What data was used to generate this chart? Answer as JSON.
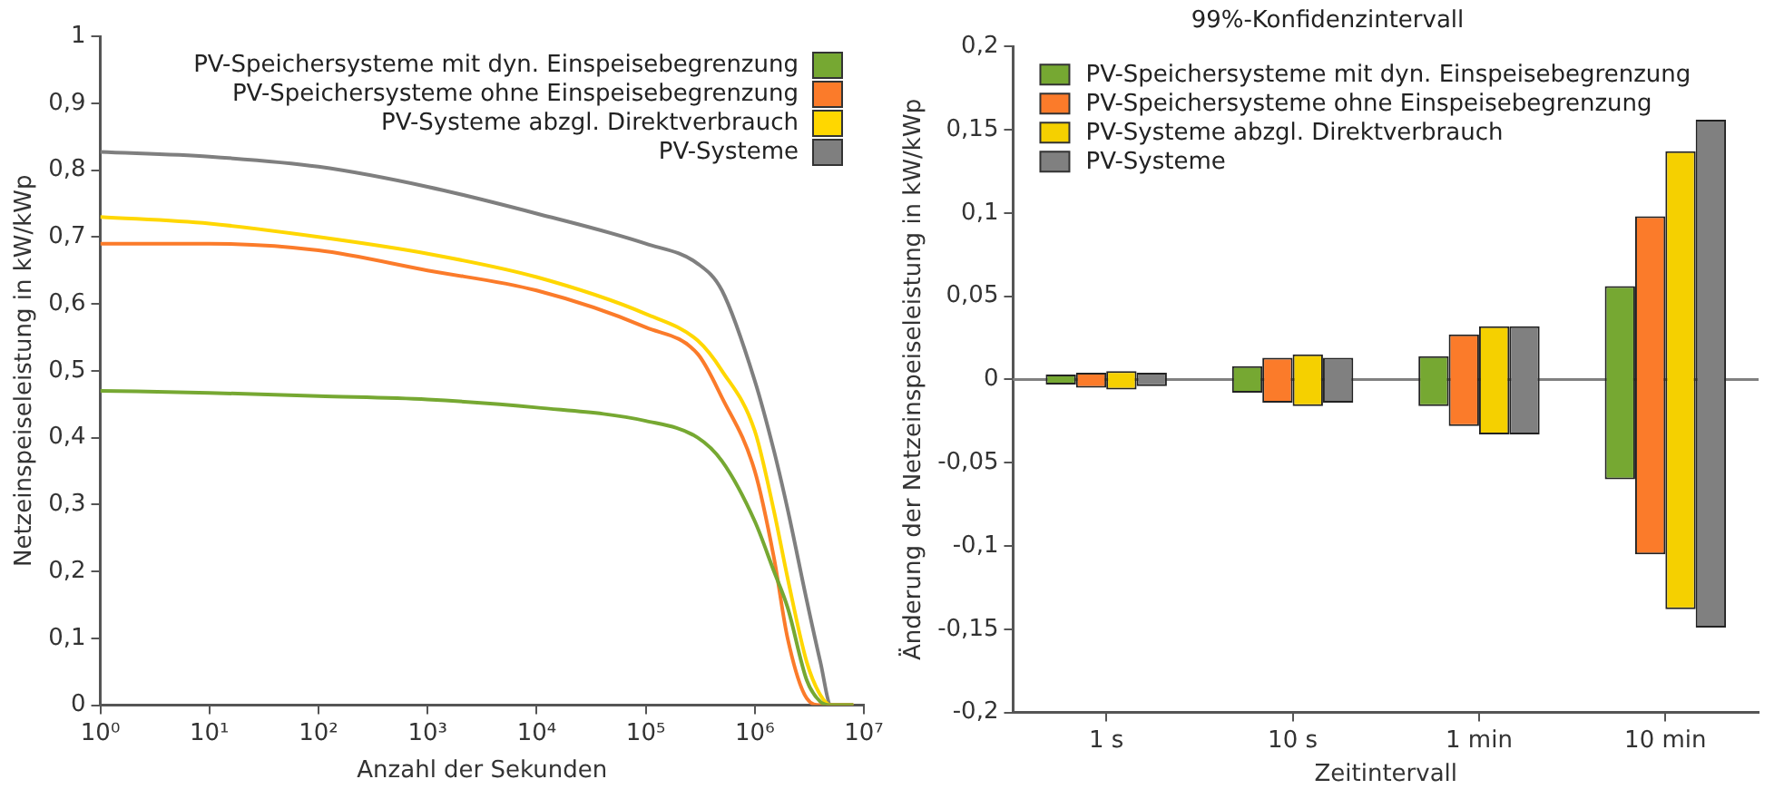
{
  "chart_data": [
    {
      "type": "line",
      "xlabel": "Anzahl der Sekunden",
      "ylabel": "Netzeinspeiseleistung in kW/kWp",
      "log": "x",
      "xlim": [
        1,
        10000000
      ],
      "xticks": [
        {
          "value": 1,
          "label": "10⁰"
        },
        {
          "value": 10,
          "label": "10¹"
        },
        {
          "value": 100,
          "label": "10²"
        },
        {
          "value": 1000,
          "label": "10³"
        },
        {
          "value": 10000,
          "label": "10⁴"
        },
        {
          "value": 100000,
          "label": "10⁵"
        },
        {
          "value": 1000000,
          "label": "10⁶"
        },
        {
          "value": 10000000,
          "label": "10⁷"
        }
      ],
      "ylim": [
        0,
        1
      ],
      "yticks": [
        {
          "value": 0,
          "label": "0"
        },
        {
          "value": 0.1,
          "label": "0,1"
        },
        {
          "value": 0.2,
          "label": "0,2"
        },
        {
          "value": 0.3,
          "label": "0,3"
        },
        {
          "value": 0.4,
          "label": "0,4"
        },
        {
          "value": 0.5,
          "label": "0,5"
        },
        {
          "value": 0.6,
          "label": "0,6"
        },
        {
          "value": 0.7,
          "label": "0,7"
        },
        {
          "value": 0.8,
          "label": "0,8"
        },
        {
          "value": 0.9,
          "label": "0,9"
        },
        {
          "value": 1,
          "label": "1"
        }
      ],
      "grid": false,
      "legend": "top right",
      "marker": "none",
      "x": [
        1,
        10,
        100,
        1000,
        10000,
        100000,
        300000,
        500000,
        1000000,
        1500000,
        2000000,
        3000000,
        4000000,
        5000000,
        8000000
      ],
      "series": [
        {
          "name": "PV-Speichersysteme mit dyn. Einspeisebegrenzung",
          "color": "#76a832",
          "values": [
            0.47,
            0.467,
            0.462,
            0.457,
            0.445,
            0.425,
            0.4,
            0.365,
            0.275,
            0.2,
            0.146,
            0.037,
            0.005,
            0,
            0
          ]
        },
        {
          "name": "PV-Speichersysteme ohne Einspeisebegrenzung",
          "color": "#fb7b2a",
          "values": [
            0.69,
            0.69,
            0.68,
            0.65,
            0.62,
            0.565,
            0.525,
            0.46,
            0.35,
            0.22,
            0.1,
            0.01,
            0,
            0,
            0
          ]
        },
        {
          "name": "PV-Systeme abzgl. Direktverbrauch",
          "color": "#ffd700",
          "values": [
            0.73,
            0.72,
            0.7,
            0.675,
            0.64,
            0.585,
            0.545,
            0.5,
            0.41,
            0.29,
            0.19,
            0.064,
            0.015,
            0,
            0
          ]
        },
        {
          "name": "PV-Systeme",
          "color": "#7f7f7f",
          "values": [
            0.827,
            0.82,
            0.805,
            0.775,
            0.735,
            0.69,
            0.66,
            0.62,
            0.485,
            0.38,
            0.293,
            0.156,
            0.064,
            0,
            0
          ]
        }
      ]
    },
    {
      "type": "bar",
      "title": "99%-Konfidenzintervall",
      "xlabel": "Zeitintervall",
      "ylabel": "Änderung der Netzeinspeiseleistung in kW/kWp",
      "categories": [
        "1 s",
        "10 s",
        "1 min",
        "10 min"
      ],
      "ylim": [
        -0.2,
        0.2
      ],
      "yticks": [
        {
          "value": -0.2,
          "label": "-0,2"
        },
        {
          "value": -0.15,
          "label": "-0,15"
        },
        {
          "value": -0.1,
          "label": "-0,1"
        },
        {
          "value": -0.05,
          "label": "-0,05"
        },
        {
          "value": 0,
          "label": "0"
        },
        {
          "value": 0.05,
          "label": "0,05"
        },
        {
          "value": 0.1,
          "label": "0,1"
        },
        {
          "value": 0.15,
          "label": "0,15"
        },
        {
          "value": 0.2,
          "label": "0,2"
        }
      ],
      "grid": false,
      "legend": "top left",
      "ref_lines": [
        {
          "axis": "y",
          "value": 0,
          "color": "#808080"
        }
      ],
      "series": [
        {
          "name": "PV-Speichersysteme mit dyn. Einspeisebegrenzung",
          "color": "#76a832",
          "base": [
            -0.003,
            -0.008,
            -0.016,
            -0.06
          ],
          "values": [
            0.006,
            0.016,
            0.03,
            0.116
          ]
        },
        {
          "name": "PV-Speichersysteme ohne Einspeisebegrenzung",
          "color": "#fb7b2a",
          "base": [
            -0.005,
            -0.014,
            -0.028,
            -0.105
          ],
          "values": [
            0.009,
            0.027,
            0.055,
            0.203
          ]
        },
        {
          "name": "PV-Systeme abzgl. Direktverbrauch",
          "color": "#f5d000",
          "base": [
            -0.006,
            -0.016,
            -0.033,
            -0.138
          ],
          "values": [
            0.011,
            0.031,
            0.065,
            0.275
          ]
        },
        {
          "name": "PV-Systeme",
          "color": "#808080",
          "base": [
            -0.004,
            -0.014,
            -0.033,
            -0.149
          ],
          "values": [
            0.008,
            0.027,
            0.065,
            0.305
          ]
        }
      ]
    }
  ]
}
